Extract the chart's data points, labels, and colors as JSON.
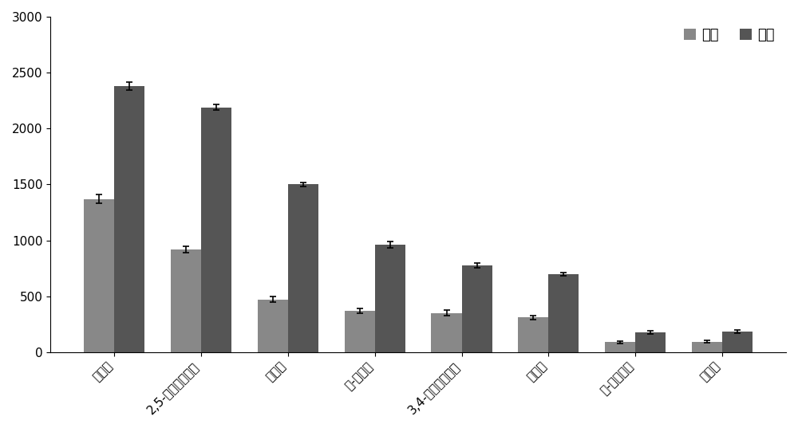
{
  "categories": [
    "陀马酸",
    "2,5-二羟基苯甲酸",
    "芥子酸",
    "反-阵魏酸",
    "3,4-二羟基苯甲酸",
    "咋啊酸",
    "反-对香豆酸",
    "香草酸"
  ],
  "acetonitrile_values": [
    1370,
    920,
    470,
    370,
    350,
    310,
    90,
    95
  ],
  "methanol_values": [
    2380,
    2190,
    1500,
    960,
    775,
    700,
    180,
    185
  ],
  "acetonitrile_errors": [
    40,
    30,
    25,
    20,
    25,
    20,
    10,
    10
  ],
  "methanol_errors": [
    35,
    25,
    20,
    30,
    20,
    15,
    15,
    12
  ],
  "color_acetonitrile": "#888888",
  "color_methanol": "#555555",
  "legend_labels": [
    "乙腼",
    "甲醇"
  ],
  "ylim": [
    0,
    3000
  ],
  "yticks": [
    0,
    500,
    1000,
    1500,
    2000,
    2500,
    3000
  ],
  "bar_width": 0.35,
  "figure_width": 10.0,
  "figure_height": 5.37,
  "background_color": "#ffffff",
  "legend_loc": "upper right",
  "legend_fontsize": 13,
  "tick_fontsize": 11,
  "label_rotation": 45
}
